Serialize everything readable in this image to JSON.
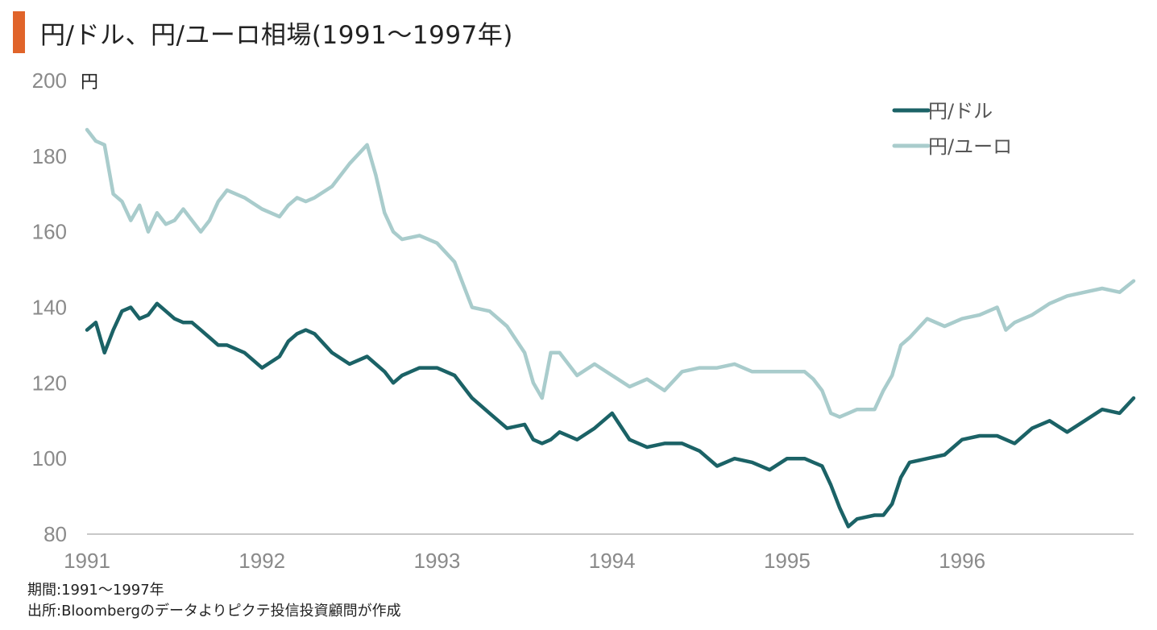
{
  "title": "円/ドル、円/ユーロ相場(1991〜1997年)",
  "colors": {
    "accent": "#e0642a",
    "usd": "#1b6266",
    "eur": "#a9cccc",
    "axis": "#c8c8c8"
  },
  "footer": {
    "period": "期間:1991〜1997年",
    "source": "出所:Bloombergのデータよりピクテ投信投資顧問が作成"
  },
  "chart_data": {
    "type": "line",
    "ylabel": "円",
    "ylim": [
      80,
      200
    ],
    "yticks": [
      "200",
      "180",
      "160",
      "140",
      "120",
      "100",
      "80"
    ],
    "xlim": [
      1991.0,
      1996.98
    ],
    "xticks": [
      {
        "label": "1991",
        "value": 1991
      },
      {
        "label": "1992",
        "value": 1992
      },
      {
        "label": "1993",
        "value": 1993
      },
      {
        "label": "1994",
        "value": 1994
      },
      {
        "label": "1995",
        "value": 1995
      },
      {
        "label": "1996",
        "value": 1996
      }
    ],
    "legend_position": "top-right",
    "series": [
      {
        "name": "円/ドル",
        "color": "#1b6266",
        "x": [
          1991.0,
          1991.05,
          1991.1,
          1991.15,
          1991.2,
          1991.25,
          1991.3,
          1991.35,
          1991.4,
          1991.45,
          1991.5,
          1991.55,
          1991.6,
          1991.65,
          1991.7,
          1991.75,
          1991.8,
          1991.9,
          1992.0,
          1992.1,
          1992.15,
          1992.2,
          1992.25,
          1992.3,
          1992.4,
          1992.5,
          1992.6,
          1992.7,
          1992.75,
          1992.8,
          1992.9,
          1993.0,
          1993.1,
          1993.2,
          1993.3,
          1993.4,
          1993.5,
          1993.55,
          1993.6,
          1993.65,
          1993.7,
          1993.8,
          1993.9,
          1994.0,
          1994.1,
          1994.2,
          1994.3,
          1994.4,
          1994.5,
          1994.6,
          1994.7,
          1994.8,
          1994.9,
          1995.0,
          1995.1,
          1995.15,
          1995.2,
          1995.25,
          1995.3,
          1995.35,
          1995.4,
          1995.5,
          1995.55,
          1995.6,
          1995.65,
          1995.7,
          1995.8,
          1995.9,
          1996.0,
          1996.1,
          1996.2,
          1996.3,
          1996.4,
          1996.5,
          1996.6,
          1996.7,
          1996.8,
          1996.9,
          1996.98
        ],
        "y": [
          134,
          136,
          128,
          134,
          139,
          140,
          137,
          138,
          141,
          139,
          137,
          136,
          136,
          134,
          132,
          130,
          130,
          128,
          124,
          127,
          131,
          133,
          134,
          133,
          128,
          125,
          127,
          123,
          120,
          122,
          124,
          124,
          122,
          116,
          112,
          108,
          109,
          105,
          104,
          105,
          107,
          105,
          108,
          112,
          105,
          103,
          104,
          104,
          102,
          98,
          100,
          99,
          97,
          100,
          100,
          99,
          98,
          93,
          87,
          82,
          84,
          85,
          85,
          88,
          95,
          99,
          100,
          101,
          105,
          106,
          106,
          104,
          108,
          110,
          107,
          110,
          113,
          112,
          116
        ]
      },
      {
        "name": "円/ユーロ",
        "color": "#a9cccc",
        "x": [
          1991.0,
          1991.05,
          1991.1,
          1991.15,
          1991.2,
          1991.25,
          1991.3,
          1991.35,
          1991.4,
          1991.45,
          1991.5,
          1991.55,
          1991.6,
          1991.65,
          1991.7,
          1991.75,
          1991.8,
          1991.9,
          1992.0,
          1992.1,
          1992.15,
          1992.2,
          1992.25,
          1992.3,
          1992.4,
          1992.5,
          1992.6,
          1992.65,
          1992.7,
          1992.75,
          1992.8,
          1992.9,
          1993.0,
          1993.1,
          1993.15,
          1993.2,
          1993.3,
          1993.4,
          1993.5,
          1993.55,
          1993.6,
          1993.65,
          1993.7,
          1993.8,
          1993.9,
          1994.0,
          1994.1,
          1994.2,
          1994.3,
          1994.4,
          1994.5,
          1994.6,
          1994.7,
          1994.8,
          1994.9,
          1995.0,
          1995.1,
          1995.15,
          1995.2,
          1995.25,
          1995.3,
          1995.35,
          1995.4,
          1995.5,
          1995.55,
          1995.6,
          1995.65,
          1995.7,
          1995.8,
          1995.9,
          1996.0,
          1996.1,
          1996.2,
          1996.25,
          1996.3,
          1996.4,
          1996.5,
          1996.6,
          1996.7,
          1996.8,
          1996.9,
          1996.98
        ],
        "y": [
          187,
          184,
          183,
          170,
          168,
          163,
          167,
          160,
          165,
          162,
          163,
          166,
          163,
          160,
          163,
          168,
          171,
          169,
          166,
          164,
          167,
          169,
          168,
          169,
          172,
          178,
          183,
          175,
          165,
          160,
          158,
          159,
          157,
          152,
          146,
          140,
          139,
          135,
          128,
          120,
          116,
          128,
          128,
          122,
          125,
          122,
          119,
          121,
          118,
          123,
          124,
          124,
          125,
          123,
          123,
          123,
          123,
          121,
          118,
          112,
          111,
          112,
          113,
          113,
          118,
          122,
          130,
          132,
          137,
          135,
          137,
          138,
          140,
          134,
          136,
          138,
          141,
          143,
          144,
          145,
          144,
          147
        ]
      }
    ]
  }
}
